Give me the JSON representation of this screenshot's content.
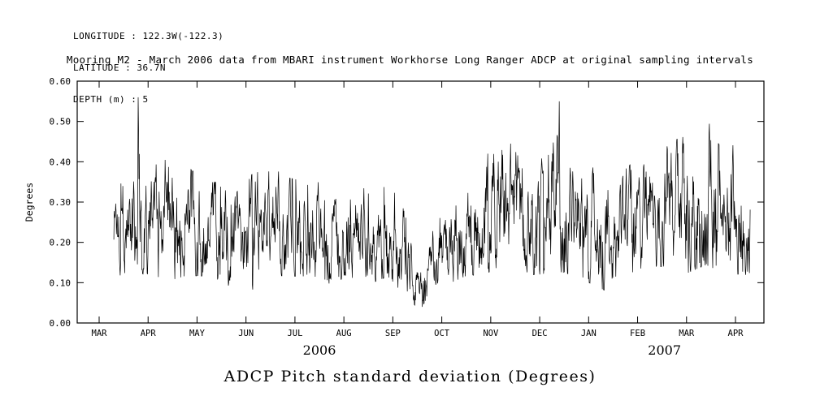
{
  "header": {
    "longitude": "LONGITUDE : 122.3W(-122.3)",
    "latitude": "LATITUDE : 36.7N",
    "depth": "DEPTH (m) : 5"
  },
  "title": "Mooring M2 - March 2006 data from MBARI instrument Workhorse Long Ranger ADCP at original sampling intervals",
  "footer_title": "ADCP Pitch standard deviation (Degrees)",
  "chart_data": {
    "type": "line",
    "series_name": "ADCP pitch standard deviation",
    "title": "Mooring M2 - March 2006 data from MBARI instrument Workhorse Long Ranger ADCP at original sampling intervals",
    "xlabel": "",
    "ylabel": "Degrees",
    "ylim": [
      0.0,
      0.6
    ],
    "ytick_step": 0.1,
    "ytick_labels": [
      "0.00",
      "0.10",
      "0.20",
      "0.30",
      "0.40",
      "0.50",
      "0.60"
    ],
    "x_months": [
      "MAR",
      "APR",
      "MAY",
      "JUN",
      "JUL",
      "AUG",
      "SEP",
      "OCT",
      "NOV",
      "DEC",
      "JAN",
      "FEB",
      "MAR",
      "APR"
    ],
    "year_labels": [
      {
        "label": "2006",
        "month_index": 4.5
      },
      {
        "label": "2007",
        "month_index": 11.55
      }
    ],
    "grid": false,
    "line_color": "#000000",
    "time_start_month_index": 0.3,
    "time_end_month_index": 13.3,
    "envelope_keypoints": [
      [
        0.3,
        0.1,
        0.42
      ],
      [
        0.6,
        0.1,
        0.38
      ],
      [
        0.8,
        0.1,
        0.56
      ],
      [
        0.95,
        0.1,
        0.4
      ],
      [
        1.3,
        0.08,
        0.42
      ],
      [
        1.8,
        0.1,
        0.4
      ],
      [
        2.2,
        0.1,
        0.36
      ],
      [
        2.6,
        0.08,
        0.36
      ],
      [
        2.9,
        0.05,
        0.33
      ],
      [
        3.1,
        0.06,
        0.38
      ],
      [
        3.5,
        0.1,
        0.4
      ],
      [
        3.9,
        0.1,
        0.37
      ],
      [
        4.3,
        0.1,
        0.36
      ],
      [
        4.7,
        0.08,
        0.36
      ],
      [
        5.1,
        0.1,
        0.36
      ],
      [
        5.5,
        0.08,
        0.34
      ],
      [
        5.9,
        0.1,
        0.36
      ],
      [
        6.2,
        0.06,
        0.3
      ],
      [
        6.5,
        0.03,
        0.16
      ],
      [
        6.8,
        0.04,
        0.24
      ],
      [
        7.1,
        0.08,
        0.33
      ],
      [
        7.5,
        0.1,
        0.38
      ],
      [
        7.9,
        0.1,
        0.46
      ],
      [
        8.2,
        0.12,
        0.5
      ],
      [
        8.6,
        0.1,
        0.42
      ],
      [
        9.0,
        0.1,
        0.44
      ],
      [
        9.4,
        0.1,
        0.55
      ],
      [
        9.6,
        0.1,
        0.46
      ],
      [
        10.0,
        0.08,
        0.42
      ],
      [
        10.4,
        0.06,
        0.34
      ],
      [
        10.8,
        0.1,
        0.4
      ],
      [
        11.2,
        0.12,
        0.44
      ],
      [
        11.6,
        0.12,
        0.46
      ],
      [
        12.0,
        0.1,
        0.48
      ],
      [
        12.4,
        0.12,
        0.52
      ],
      [
        12.8,
        0.1,
        0.46
      ],
      [
        13.1,
        0.1,
        0.45
      ],
      [
        13.3,
        0.1,
        0.4
      ]
    ],
    "notable_features": [
      {
        "month_index": 0.8,
        "value": 0.56,
        "note": "maximum spike, late March 2006"
      },
      {
        "month_index": 9.4,
        "value": 0.55,
        "note": "spike, mid December 2006"
      },
      {
        "month_index": 6.6,
        "value": 0.04,
        "note": "quiet period minimum, late September / early October 2006"
      }
    ]
  }
}
